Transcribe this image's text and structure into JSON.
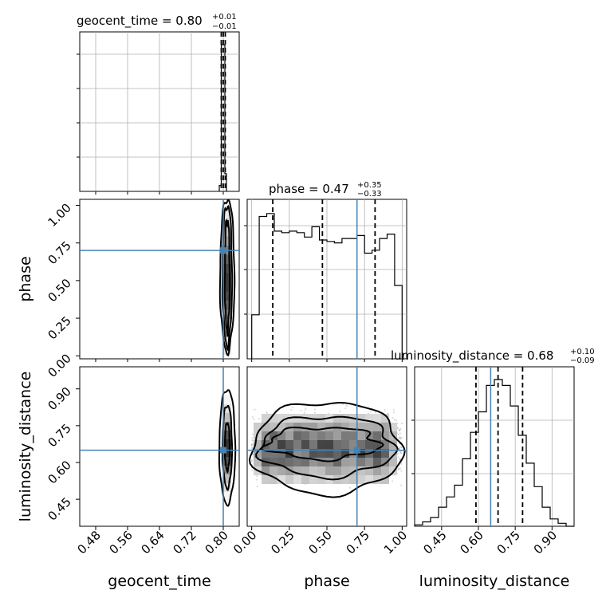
{
  "colors": {
    "truth": "#4682b4",
    "hist": "#000000",
    "grid": "#b0b0b0",
    "quantile": "#000000"
  },
  "titles": {
    "geocent_time": {
      "prefix": "geocent_time = 0.80",
      "upper": "+0.01",
      "lower": "−0.01"
    },
    "phase": {
      "prefix": "phase = 0.47",
      "upper": "+0.35",
      "lower": "−0.33"
    },
    "luminosity_distance": {
      "prefix": "luminosity_distance = 0.68",
      "upper": "+0.10",
      "lower": "−0.09"
    }
  },
  "axis_labels": {
    "geocent_time": "geocent_time",
    "phase": "phase",
    "luminosity_distance": "luminosity_distance"
  },
  "ticks": {
    "geocent_time": [
      "0.48",
      "0.56",
      "0.64",
      "0.72",
      "0.80"
    ],
    "phase": [
      "0.00",
      "0.25",
      "0.50",
      "0.75",
      "1.00"
    ],
    "luminosity_distance": [
      "0.45",
      "0.60",
      "0.75",
      "0.90"
    ]
  },
  "chart_data": [
    {
      "type": "histogram",
      "panel": "geocent_time 1D marginal",
      "title": "geocent_time = 0.80 (+0.01 / −0.01)",
      "xlim": [
        0.44,
        0.84
      ],
      "bin_edges": [
        0.79,
        0.795,
        0.798,
        0.801,
        0.804,
        0.808
      ],
      "relative_heights": [
        0.04,
        1.0,
        1.0,
        1.0,
        0.12
      ],
      "quantiles": [
        0.795,
        0.8,
        0.805
      ],
      "truth": 0.8,
      "grid": true
    },
    {
      "type": "histogram",
      "panel": "phase 1D marginal",
      "title": "phase = 0.47 (+0.35 / −0.33)",
      "xlim": [
        -0.03,
        1.03
      ],
      "bin_edges": [
        0.0,
        0.05,
        0.1,
        0.15,
        0.2,
        0.25,
        0.3,
        0.35,
        0.4,
        0.45,
        0.5,
        0.55,
        0.6,
        0.65,
        0.7,
        0.75,
        0.8,
        0.85,
        0.9,
        0.95,
        1.0
      ],
      "relative_heights": [
        0.3,
        0.97,
        0.99,
        0.87,
        0.86,
        0.87,
        0.86,
        0.83,
        0.9,
        0.81,
        0.8,
        0.79,
        0.82,
        0.82,
        0.84,
        0.72,
        0.74,
        0.82,
        0.85,
        0.5
      ],
      "quantiles": [
        0.14,
        0.47,
        0.82
      ],
      "truth": 0.7,
      "grid": true
    },
    {
      "type": "histogram",
      "panel": "luminosity_distance 1D marginal",
      "title": "luminosity_distance = 0.68 (+0.10 / −0.09)",
      "xlim": [
        0.34,
        0.99
      ],
      "bin_edges": [
        0.34,
        0.3725,
        0.405,
        0.4375,
        0.47,
        0.5025,
        0.535,
        0.5675,
        0.6,
        0.6325,
        0.665,
        0.6975,
        0.73,
        0.7625,
        0.795,
        0.8275,
        0.86,
        0.8925,
        0.925,
        0.9575,
        0.99
      ],
      "relative_heights": [
        0.01,
        0.03,
        0.06,
        0.13,
        0.2,
        0.28,
        0.46,
        0.64,
        0.78,
        0.96,
        1.0,
        0.96,
        0.82,
        0.62,
        0.43,
        0.27,
        0.13,
        0.05,
        0.02,
        0.0
      ],
      "quantiles": [
        0.59,
        0.68,
        0.78
      ],
      "truth": 0.65,
      "grid": true
    },
    {
      "type": "heatmap",
      "panel": "phase vs geocent_time",
      "x": "geocent_time",
      "y": "phase",
      "xlim": [
        0.44,
        0.84
      ],
      "ylim": [
        -0.02,
        1.04
      ],
      "contour_center": [
        0.8,
        0.5
      ],
      "truth": [
        0.8,
        0.7
      ]
    },
    {
      "type": "heatmap",
      "panel": "luminosity_distance vs geocent_time",
      "x": "geocent_time",
      "y": "luminosity_distance",
      "xlim": [
        0.44,
        0.84
      ],
      "ylim": [
        0.34,
        0.99
      ],
      "contour_center": [
        0.8,
        0.67
      ],
      "truth": [
        0.8,
        0.65
      ]
    },
    {
      "type": "heatmap",
      "panel": "luminosity_distance vs phase",
      "x": "phase",
      "y": "luminosity_distance",
      "xlim": [
        -0.03,
        1.03
      ],
      "ylim": [
        0.34,
        0.99
      ],
      "contour_center": [
        0.5,
        0.67
      ],
      "truth": [
        0.7,
        0.65
      ]
    }
  ]
}
